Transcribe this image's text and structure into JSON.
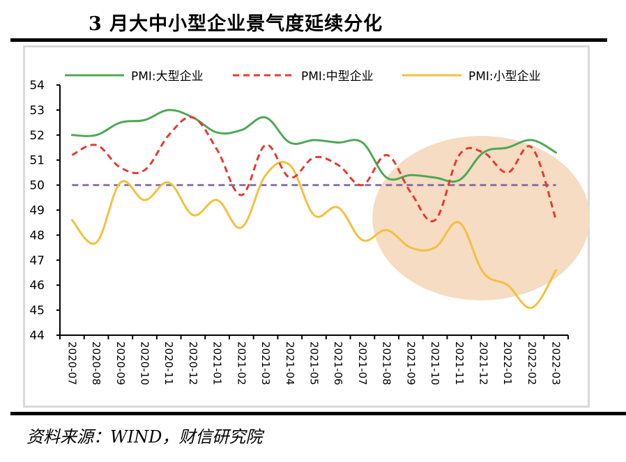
{
  "page": {
    "title": "3 月大中小型企业景气度延续分化",
    "source": "资料来源：WIND，财信研究院"
  },
  "chart_data": {
    "type": "line",
    "title": "3 月大中小型企业景气度延续分化",
    "xlabel": "",
    "ylabel": "",
    "ylim": [
      44,
      54
    ],
    "yticks": [
      "44",
      "45",
      "46",
      "47",
      "48",
      "49",
      "50",
      "51",
      "52",
      "53",
      "54"
    ],
    "categories": [
      "2020-07",
      "2020-08",
      "2020-09",
      "2020-10",
      "2020-11",
      "2020-12",
      "2021-01",
      "2021-02",
      "2021-03",
      "2021-04",
      "2021-05",
      "2021-06",
      "2021-07",
      "2021-08",
      "2021-09",
      "2021-10",
      "2021-11",
      "2021-12",
      "2022-01",
      "2022-02",
      "2022-03"
    ],
    "grid": false,
    "legend_position": "top",
    "series": [
      {
        "name": "PMI:大型企业",
        "color": "#4ea855",
        "style": "solid",
        "values": [
          52.0,
          52.0,
          52.5,
          52.6,
          53.0,
          52.7,
          52.1,
          52.2,
          52.7,
          51.7,
          51.8,
          51.7,
          51.7,
          50.3,
          50.4,
          50.3,
          50.2,
          51.3,
          51.5,
          51.8,
          51.3
        ]
      },
      {
        "name": "PMI:中型企业",
        "color": "#e8392f",
        "style": "dashed",
        "values": [
          51.2,
          51.6,
          50.7,
          50.6,
          52.0,
          52.7,
          51.4,
          49.6,
          51.6,
          50.3,
          51.1,
          50.8,
          50.0,
          51.2,
          49.7,
          48.6,
          51.2,
          51.3,
          50.5,
          51.5,
          48.6
        ]
      },
      {
        "name": "PMI:小型企业",
        "color": "#f4c03e",
        "style": "solid",
        "values": [
          48.6,
          47.7,
          50.1,
          49.4,
          50.1,
          48.8,
          49.4,
          48.3,
          50.4,
          50.8,
          48.8,
          49.1,
          47.8,
          48.2,
          47.5,
          47.5,
          48.5,
          46.5,
          46.0,
          45.1,
          46.6
        ]
      }
    ],
    "reference_line": {
      "value": 50,
      "color": "#8064a2",
      "style": "dashed"
    },
    "highlight": {
      "shape": "ellipse",
      "color": "#f5dcc3",
      "from": "2021-08",
      "to": "2022-03"
    }
  }
}
